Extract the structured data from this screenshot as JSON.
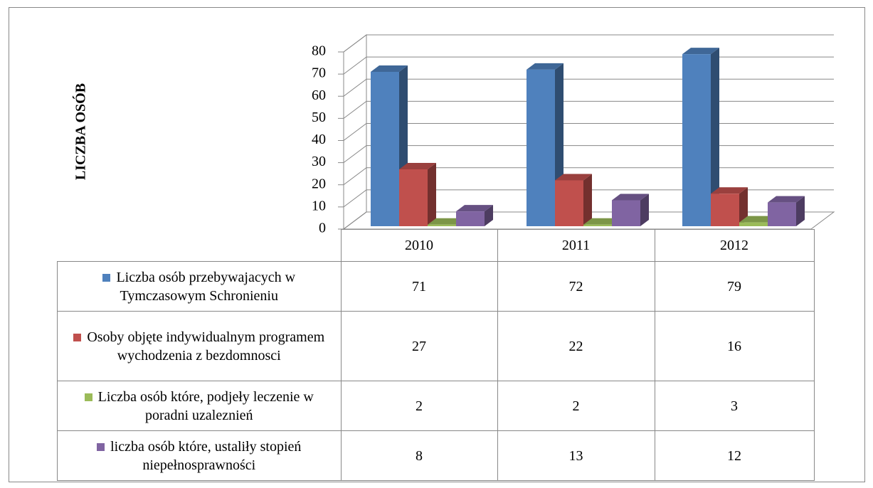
{
  "chart_data": {
    "type": "bar",
    "y_label": "LICZBA OSÓB",
    "categories": [
      "2010",
      "2011",
      "2012"
    ],
    "series": [
      {
        "name": "Liczba osób przebywajacych w Tymczasowym Schronieniu",
        "color": "#4f81bd",
        "values": [
          71,
          72,
          79
        ]
      },
      {
        "name": "Osoby objęte indywidualnym programem wychodzenia z bezdomnosci",
        "color": "#c0504d",
        "values": [
          27,
          22,
          16
        ]
      },
      {
        "name": "Liczba osób które, podjeły leczenie w poradni uzaleznień",
        "color": "#9bbb59",
        "values": [
          2,
          2,
          3
        ]
      },
      {
        "name": "liczba osób które, ustaliły stopień niepełnosprawności",
        "color": "#8064a2",
        "values": [
          8,
          13,
          12
        ]
      }
    ],
    "ylim": [
      0,
      80
    ],
    "yticks": [
      0,
      10,
      20,
      30,
      40,
      50,
      60,
      70,
      80
    ],
    "grid": true,
    "data_table": true
  }
}
